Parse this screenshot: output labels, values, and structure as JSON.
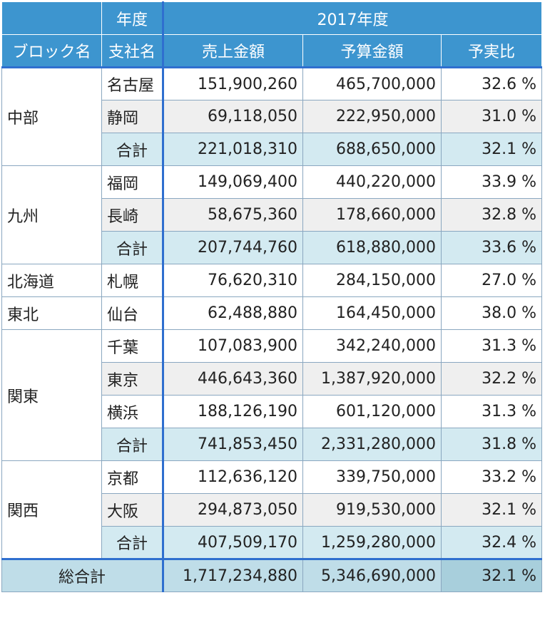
{
  "header": {
    "year_label": "年度",
    "year_value": "2017年度",
    "block_label": "ブロック名",
    "branch_label": "支社名",
    "sales_label": "売上金額",
    "budget_label": "予算金額",
    "ratio_label": "予実比"
  },
  "groups": [
    {
      "block": "中部",
      "rows": [
        {
          "branch": "名古屋",
          "sales": "151,900,260",
          "budget": "465,700,000",
          "ratio": "32.6 %"
        },
        {
          "branch": "静岡",
          "sales": "69,118,050",
          "budget": "222,950,000",
          "ratio": "31.0 %"
        }
      ],
      "subtotal": {
        "label": "合計",
        "sales": "221,018,310",
        "budget": "688,650,000",
        "ratio": "32.1 %"
      }
    },
    {
      "block": "九州",
      "rows": [
        {
          "branch": "福岡",
          "sales": "149,069,400",
          "budget": "440,220,000",
          "ratio": "33.9 %"
        },
        {
          "branch": "長崎",
          "sales": "58,675,360",
          "budget": "178,660,000",
          "ratio": "32.8 %"
        }
      ],
      "subtotal": {
        "label": "合計",
        "sales": "207,744,760",
        "budget": "618,880,000",
        "ratio": "33.6 %"
      }
    },
    {
      "block": "北海道",
      "rows": [
        {
          "branch": "札幌",
          "sales": "76,620,310",
          "budget": "284,150,000",
          "ratio": "27.0 %"
        }
      ],
      "subtotal": null
    },
    {
      "block": "東北",
      "rows": [
        {
          "branch": "仙台",
          "sales": "62,488,880",
          "budget": "164,450,000",
          "ratio": "38.0 %"
        }
      ],
      "subtotal": null
    },
    {
      "block": "関東",
      "rows": [
        {
          "branch": "千葉",
          "sales": "107,083,900",
          "budget": "342,240,000",
          "ratio": "31.3 %"
        },
        {
          "branch": "東京",
          "sales": "446,643,360",
          "budget": "1,387,920,000",
          "ratio": "32.2 %"
        },
        {
          "branch": "横浜",
          "sales": "188,126,190",
          "budget": "601,120,000",
          "ratio": "31.3 %"
        }
      ],
      "subtotal": {
        "label": "合計",
        "sales": "741,853,450",
        "budget": "2,331,280,000",
        "ratio": "31.8 %"
      }
    },
    {
      "block": "関西",
      "rows": [
        {
          "branch": "京都",
          "sales": "112,636,120",
          "budget": "339,750,000",
          "ratio": "33.2 %"
        },
        {
          "branch": "大阪",
          "sales": "294,873,050",
          "budget": "919,530,000",
          "ratio": "32.1 %"
        }
      ],
      "subtotal": {
        "label": "合計",
        "sales": "407,509,170",
        "budget": "1,259,280,000",
        "ratio": "32.4 %"
      }
    }
  ],
  "grand_total": {
    "label": "総合計",
    "sales": "1,717,234,880",
    "budget": "5,346,690,000",
    "ratio": "32.1 %"
  }
}
